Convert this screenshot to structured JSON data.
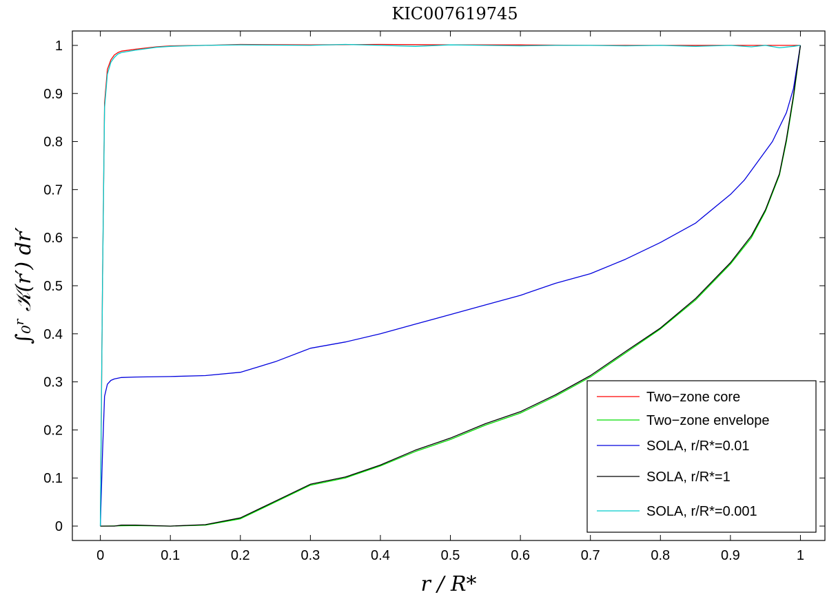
{
  "chart_data": {
    "type": "line",
    "title": "KIC007619745",
    "xlabel": "r / R*",
    "ylabel": "∫₀ʳ 𝒦(r′) dr′",
    "xlim": [
      -0.04,
      1.035
    ],
    "ylim": [
      -0.03,
      1.03
    ],
    "xticks": [
      0,
      0.1,
      0.2,
      0.3,
      0.4,
      0.5,
      0.6,
      0.7,
      0.8,
      0.9,
      1
    ],
    "xtick_labels": [
      "0",
      "0.1",
      "0.2",
      "0.3",
      "0.4",
      "0.5",
      "0.6",
      "0.7",
      "0.8",
      "0.9",
      "1"
    ],
    "yticks": [
      0,
      0.1,
      0.2,
      0.3,
      0.4,
      0.5,
      0.6,
      0.7,
      0.8,
      0.9,
      1
    ],
    "ytick_labels": [
      "0",
      "0.1",
      "0.2",
      "0.3",
      "0.4",
      "0.5",
      "0.6",
      "0.7",
      "0.8",
      "0.9",
      "1"
    ],
    "grid": false,
    "legend_position": "bottom-right",
    "series": [
      {
        "name": "Two−zone core",
        "color": "#ff0000",
        "x": [
          0,
          0.003,
          0.006,
          0.01,
          0.015,
          0.02,
          0.025,
          0.03,
          0.05,
          0.08,
          0.1,
          0.15,
          0.2,
          0.3,
          0.4,
          0.5,
          0.6,
          0.7,
          0.8,
          0.9,
          0.95,
          0.98,
          1.0
        ],
        "y": [
          0,
          0.5,
          0.88,
          0.95,
          0.97,
          0.98,
          0.985,
          0.988,
          0.992,
          0.997,
          0.999,
          1.0,
          1.002,
          1.001,
          1.002,
          1.001,
          1.001,
          1.0,
          1.0,
          1.0,
          1.0,
          1.0,
          1.0
        ]
      },
      {
        "name": "Two−zone envelope",
        "color": "#00dd00",
        "x": [
          0,
          0.05,
          0.1,
          0.15,
          0.2,
          0.25,
          0.3,
          0.35,
          0.4,
          0.45,
          0.5,
          0.55,
          0.6,
          0.65,
          0.7,
          0.75,
          0.8,
          0.85,
          0.9,
          0.93,
          0.95,
          0.97,
          0.98,
          0.99,
          1.0
        ],
        "y": [
          0,
          0.001,
          0.0,
          0.002,
          0.015,
          0.05,
          0.085,
          0.1,
          0.125,
          0.155,
          0.18,
          0.21,
          0.235,
          0.27,
          0.31,
          0.36,
          0.41,
          0.47,
          0.545,
          0.6,
          0.655,
          0.73,
          0.8,
          0.89,
          1.0
        ]
      },
      {
        "name": "SOLA, r/R*=0.01",
        "color": "#0000dd",
        "x": [
          0,
          0.003,
          0.006,
          0.01,
          0.015,
          0.02,
          0.03,
          0.05,
          0.1,
          0.15,
          0.2,
          0.25,
          0.3,
          0.35,
          0.4,
          0.45,
          0.5,
          0.55,
          0.6,
          0.65,
          0.7,
          0.75,
          0.8,
          0.85,
          0.9,
          0.92,
          0.94,
          0.96,
          0.98,
          0.99,
          1.0
        ],
        "y": [
          0,
          0.15,
          0.27,
          0.295,
          0.303,
          0.306,
          0.309,
          0.31,
          0.311,
          0.313,
          0.32,
          0.342,
          0.37,
          0.383,
          0.4,
          0.42,
          0.44,
          0.46,
          0.48,
          0.505,
          0.525,
          0.555,
          0.59,
          0.63,
          0.69,
          0.72,
          0.76,
          0.8,
          0.86,
          0.91,
          1.0
        ]
      },
      {
        "name": "SOLA, r/R*=1",
        "color": "#000000",
        "x": [
          0,
          0.02,
          0.03,
          0.05,
          0.1,
          0.15,
          0.2,
          0.25,
          0.3,
          0.35,
          0.4,
          0.45,
          0.5,
          0.55,
          0.6,
          0.65,
          0.7,
          0.75,
          0.8,
          0.85,
          0.9,
          0.93,
          0.95,
          0.97,
          0.98,
          0.99,
          1.0
        ],
        "y": [
          0,
          0.0,
          0.002,
          0.002,
          0.0,
          0.003,
          0.017,
          0.052,
          0.087,
          0.102,
          0.127,
          0.158,
          0.183,
          0.213,
          0.238,
          0.273,
          0.313,
          0.363,
          0.412,
          0.473,
          0.548,
          0.604,
          0.658,
          0.733,
          0.805,
          0.895,
          1.0
        ]
      },
      {
        "name": "SOLA, r/R*=0.001",
        "color": "#00cccc",
        "x": [
          0,
          0.003,
          0.006,
          0.01,
          0.015,
          0.02,
          0.025,
          0.03,
          0.05,
          0.08,
          0.1,
          0.15,
          0.2,
          0.3,
          0.35,
          0.4,
          0.45,
          0.5,
          0.55,
          0.6,
          0.65,
          0.7,
          0.75,
          0.8,
          0.85,
          0.9,
          0.93,
          0.95,
          0.97,
          0.99,
          1.0
        ],
        "y": [
          0,
          0.5,
          0.87,
          0.94,
          0.965,
          0.975,
          0.982,
          0.985,
          0.99,
          0.996,
          0.998,
          1.0,
          1.001,
          1.0,
          1.002,
          1.0,
          0.998,
          1.001,
          1.0,
          0.999,
          1.0,
          1.0,
          0.999,
          1.0,
          0.998,
          1.0,
          0.997,
          1.0,
          0.995,
          0.998,
          1.0
        ]
      }
    ]
  }
}
